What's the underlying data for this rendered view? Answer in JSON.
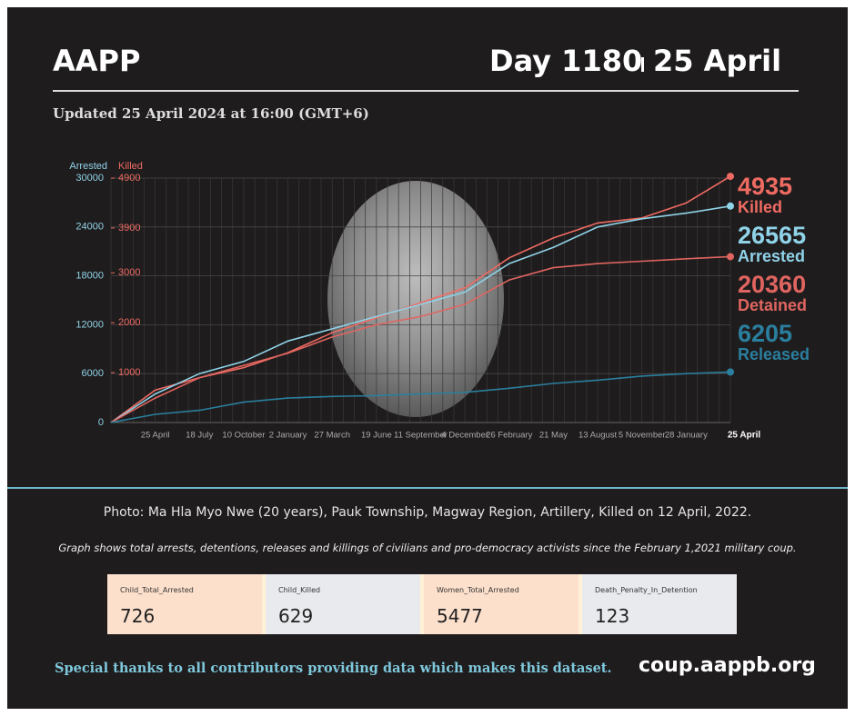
{
  "header": {
    "title": "AAPP",
    "day": "Day 1180",
    "date": "25 April"
  },
  "updated": "Updated 25 April 2024 at 16:00 (GMT+6)",
  "chart_data": {
    "type": "line",
    "yaxis_label": "Arrested",
    "y2axis_label": "Killed",
    "categories": [
      null,
      "25 April",
      "18 July",
      "10 October",
      "2 January",
      "27 March",
      "19 June",
      "11 September",
      "4 December",
      "26 February",
      "21 May",
      "13 August",
      "5 November",
      "28 January",
      "25 April"
    ],
    "ylim": [
      0,
      30000
    ],
    "yticks": [
      0,
      6000,
      12000,
      18000,
      24000,
      30000
    ],
    "y2lim": [
      0,
      4900
    ],
    "y2ticks": [
      1000,
      2000,
      3000,
      3900,
      4900
    ],
    "grid": true,
    "series": [
      {
        "name": "Killed",
        "color": "#ef6b62",
        "axis": "y2",
        "values": [
          0,
          650,
          900,
          1100,
          1400,
          1800,
          2100,
          2400,
          2700,
          3300,
          3700,
          4000,
          4100,
          4400,
          4935
        ]
      },
      {
        "name": "Arrested",
        "color": "#8fd3e8",
        "values": [
          0,
          3500,
          6000,
          7500,
          10000,
          11500,
          13000,
          14500,
          16000,
          19500,
          21500,
          24000,
          25000,
          25700,
          26565
        ]
      },
      {
        "name": "Detained",
        "color": "#e06560",
        "values": [
          0,
          3000,
          5500,
          7000,
          8500,
          10500,
          12000,
          13000,
          14500,
          17500,
          19000,
          19500,
          19800,
          20100,
          20360
        ]
      },
      {
        "name": "Released",
        "color": "#2a7f9e",
        "values": [
          0,
          1000,
          1500,
          2500,
          3000,
          3200,
          3300,
          3500,
          3700,
          4200,
          4800,
          5200,
          5700,
          6000,
          6205
        ]
      }
    ]
  },
  "caption": "Photo: Ma Hla Myo Nwe (20 years), Pauk Township, Magway Region, Artillery, Killed on 12 April, 2022.",
  "note": "Graph shows total arrests, detentions, releases and killings of civilians and pro-democracy activists since the February 1,2021 military coup.",
  "cards": [
    {
      "label": "Child_Total_Arrested",
      "value": 726
    },
    {
      "label": "Child_Killed",
      "value": 629
    },
    {
      "label": "Women_Total_Arrested",
      "value": 5477
    },
    {
      "label": "Death_Penalty_In_Detention",
      "value": 123
    }
  ],
  "footer": {
    "thanks": "Special thanks to all contributors providing data which makes this dataset.",
    "url": "coup.aappb.org"
  }
}
